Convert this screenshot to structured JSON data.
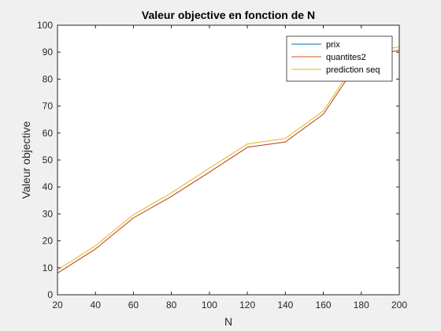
{
  "chart_data": {
    "type": "line",
    "title": "Valeur objective en fonction de N",
    "xlabel": "N",
    "ylabel": "Valeur objective",
    "xlim": [
      20,
      200
    ],
    "ylim": [
      0,
      100
    ],
    "xticks": [
      20,
      40,
      60,
      80,
      100,
      120,
      140,
      160,
      180,
      200
    ],
    "yticks": [
      0,
      10,
      20,
      30,
      40,
      50,
      60,
      70,
      80,
      90,
      100
    ],
    "grid": false,
    "legend_position": "top-right",
    "x": [
      20,
      40,
      60,
      80,
      100,
      120,
      140,
      160,
      180,
      200
    ],
    "series": [
      {
        "name": "prix",
        "color": "#0072BD",
        "values": [
          8.0,
          17.0,
          28.5,
          36.5,
          45.5,
          54.7,
          56.7,
          67.0,
          88.0,
          90.7
        ]
      },
      {
        "name": "quantites2",
        "color": "#D95319",
        "values": [
          8.0,
          17.0,
          28.5,
          36.5,
          45.5,
          54.7,
          56.7,
          67.0,
          88.0,
          90.7
        ]
      },
      {
        "name": "prediction seq",
        "color": "#EDB120",
        "values": [
          9.2,
          18.2,
          29.7,
          37.8,
          47.0,
          55.9,
          58.0,
          68.2,
          89.3,
          92.0
        ]
      }
    ]
  }
}
